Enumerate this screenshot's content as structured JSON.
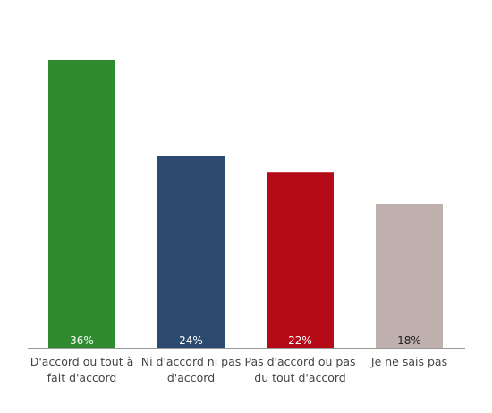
{
  "chart_data": {
    "type": "bar",
    "categories": [
      [
        "D'accord ou tout à",
        "fait d'accord"
      ],
      [
        "Ni d'accord ni pas",
        "d'accord"
      ],
      [
        "Pas d'accord ou pas",
        "du tout d'accord"
      ],
      [
        "Je ne sais pas"
      ]
    ],
    "values": [
      36,
      24,
      22,
      18
    ],
    "value_labels": [
      "36%",
      "24%",
      "22%",
      "18%"
    ],
    "colors": [
      "#2e8b2e",
      "#2b4a6e",
      "#b50a18",
      "#bfb0ae"
    ],
    "value_label_colors": [
      "#ffffff",
      "#ffffff",
      "#ffffff",
      "#222222"
    ],
    "ylim": [
      0,
      36
    ],
    "grid": false,
    "title": "",
    "xlabel": "",
    "ylabel": ""
  }
}
